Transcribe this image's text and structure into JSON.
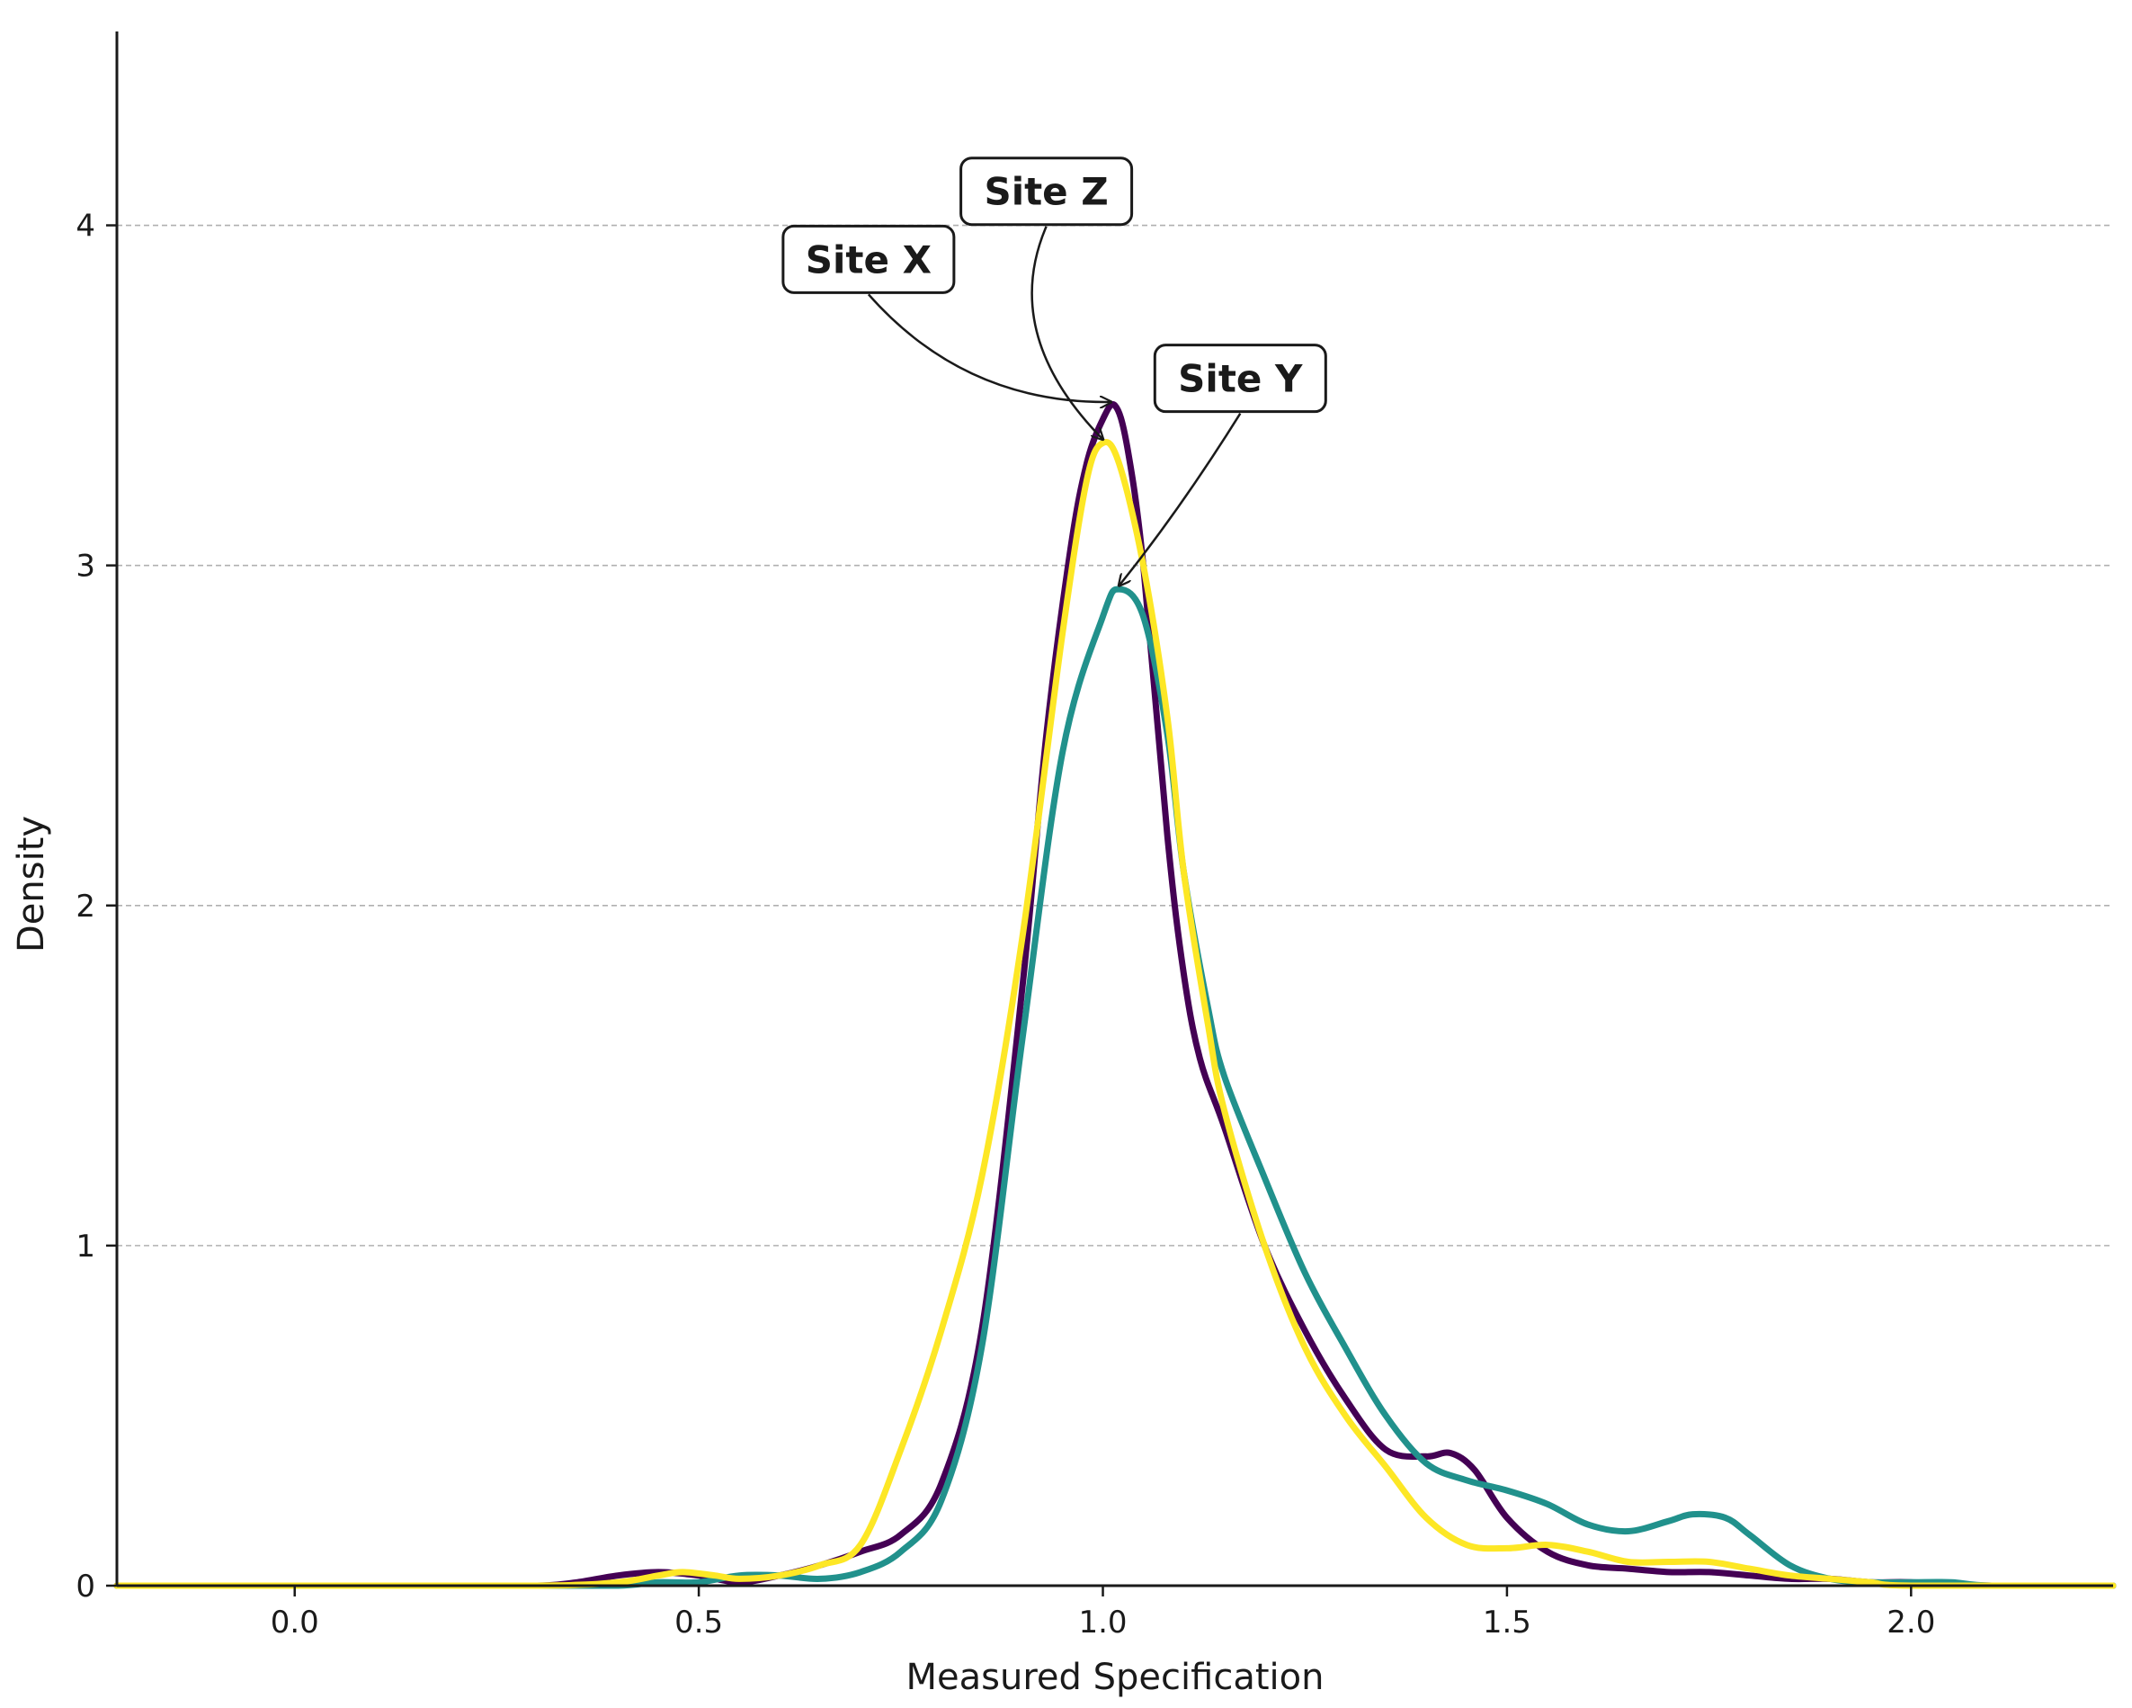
{
  "chart_data": {
    "type": "line",
    "title": "",
    "xlabel": "Measured Specification",
    "ylabel": "Density",
    "xlim": [
      -0.22,
      2.25
    ],
    "ylim": [
      0,
      4.57
    ],
    "xticks": [
      "0.0",
      "0.5",
      "1.0",
      "1.5",
      "2.0"
    ],
    "yticks": [
      "0",
      "1",
      "2",
      "3",
      "4"
    ],
    "grid": "horizontal dashed",
    "legend": "none",
    "series": [
      {
        "name": "Site X",
        "color": "#440154",
        "x": [
          -0.22,
          0.0,
          0.2,
          0.3,
          0.35,
          0.4,
          0.45,
          0.5,
          0.55,
          0.6,
          0.65,
          0.7,
          0.75,
          0.8,
          0.85,
          0.9,
          0.93,
          0.96,
          0.98,
          1.0,
          1.015,
          1.03,
          1.05,
          1.08,
          1.1,
          1.12,
          1.15,
          1.2,
          1.25,
          1.3,
          1.35,
          1.4,
          1.43,
          1.46,
          1.5,
          1.55,
          1.6,
          1.65,
          1.7,
          1.75,
          1.8,
          1.85,
          1.9,
          1.95,
          2.0,
          2.1,
          2.25
        ],
        "y": [
          0,
          0,
          0,
          0,
          0.01,
          0.03,
          0.04,
          0.03,
          0.01,
          0.03,
          0.06,
          0.1,
          0.15,
          0.3,
          0.75,
          1.75,
          2.5,
          3.05,
          3.3,
          3.43,
          3.47,
          3.35,
          3.0,
          2.2,
          1.8,
          1.55,
          1.35,
          1.0,
          0.75,
          0.55,
          0.4,
          0.38,
          0.39,
          0.34,
          0.2,
          0.1,
          0.06,
          0.05,
          0.04,
          0.04,
          0.03,
          0.02,
          0.02,
          0.01,
          0.01,
          0,
          0
        ]
      },
      {
        "name": "Site Y",
        "color": "#21918c",
        "x": [
          -0.22,
          0.0,
          0.3,
          0.4,
          0.45,
          0.5,
          0.55,
          0.6,
          0.65,
          0.7,
          0.75,
          0.8,
          0.85,
          0.9,
          0.95,
          1.0,
          1.02,
          1.05,
          1.08,
          1.1,
          1.13,
          1.15,
          1.2,
          1.25,
          1.3,
          1.35,
          1.4,
          1.45,
          1.5,
          1.55,
          1.6,
          1.65,
          1.7,
          1.73,
          1.77,
          1.8,
          1.85,
          1.9,
          1.95,
          2.0,
          2.05,
          2.1,
          2.25
        ],
        "y": [
          0,
          0,
          0,
          0,
          0.01,
          0.01,
          0.03,
          0.03,
          0.02,
          0.04,
          0.1,
          0.25,
          0.7,
          1.6,
          2.45,
          2.85,
          2.93,
          2.85,
          2.5,
          2.1,
          1.7,
          1.5,
          1.2,
          0.92,
          0.7,
          0.5,
          0.36,
          0.31,
          0.28,
          0.24,
          0.18,
          0.16,
          0.19,
          0.21,
          0.2,
          0.15,
          0.06,
          0.02,
          0.01,
          0.01,
          0.01,
          0,
          0
        ]
      },
      {
        "name": "Site Z",
        "color": "#fde725",
        "x": [
          -0.22,
          0.0,
          0.3,
          0.4,
          0.45,
          0.48,
          0.52,
          0.55,
          0.6,
          0.65,
          0.7,
          0.75,
          0.8,
          0.85,
          0.9,
          0.95,
          0.98,
          1.0,
          1.02,
          1.05,
          1.08,
          1.1,
          1.13,
          1.15,
          1.2,
          1.25,
          1.3,
          1.35,
          1.4,
          1.45,
          1.5,
          1.55,
          1.6,
          1.65,
          1.7,
          1.75,
          1.8,
          1.85,
          1.9,
          1.95,
          2.0,
          2.25
        ],
        "y": [
          0,
          0,
          0,
          0.01,
          0.03,
          0.04,
          0.03,
          0.02,
          0.03,
          0.06,
          0.12,
          0.4,
          0.75,
          1.2,
          1.9,
          2.8,
          3.25,
          3.36,
          3.3,
          3.0,
          2.55,
          2.1,
          1.65,
          1.4,
          1.0,
          0.7,
          0.5,
          0.35,
          0.2,
          0.12,
          0.11,
          0.12,
          0.1,
          0.07,
          0.07,
          0.07,
          0.05,
          0.03,
          0.02,
          0.01,
          0,
          0
        ]
      }
    ],
    "annotations": [
      {
        "text": "Site X",
        "x": 0.71,
        "y": 3.9,
        "target_x": 1.01,
        "target_y": 3.47
      },
      {
        "text": "Site Z",
        "x": 0.93,
        "y": 4.1,
        "target_x": 1.0,
        "target_y": 3.36
      },
      {
        "text": "Site Y",
        "x": 1.17,
        "y": 3.55,
        "target_x": 1.02,
        "target_y": 2.93
      }
    ]
  }
}
